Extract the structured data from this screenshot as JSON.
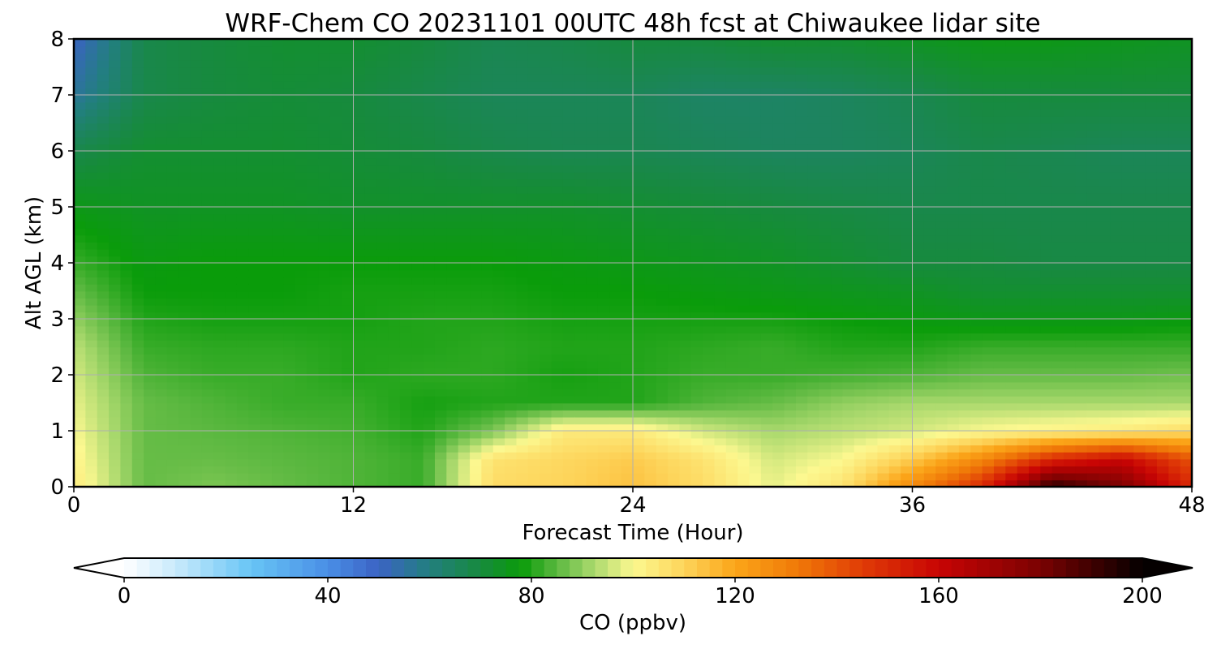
{
  "chart_data": {
    "type": "heatmap",
    "title": "WRF-Chem CO  20231101 00UTC 48h fcst at Chiwaukee lidar site",
    "xlabel": "Forecast Time (Hour)",
    "ylabel": "Alt AGL (km)",
    "xlim": [
      0,
      48
    ],
    "ylim": [
      0,
      8
    ],
    "x_ticks": [
      "0",
      "12",
      "24",
      "36",
      "48"
    ],
    "y_ticks": [
      "0",
      "1",
      "2",
      "3",
      "4",
      "5",
      "6",
      "7",
      "8"
    ],
    "grid": true,
    "x": [
      0,
      3,
      6,
      9,
      12,
      15,
      18,
      21,
      24,
      27,
      30,
      33,
      36,
      39,
      42,
      45,
      48
    ],
    "y": [
      0,
      0.5,
      1,
      1.5,
      2,
      2.5,
      3,
      3.5,
      4,
      5,
      6,
      7,
      8
    ],
    "z": [
      [
        104,
        86,
        88,
        86,
        84,
        82,
        108,
        110,
        114,
        108,
        98,
        106,
        128,
        150,
        195,
        180,
        150
      ],
      [
        102,
        86,
        86,
        85,
        84,
        82,
        106,
        109,
        112,
        106,
        96,
        100,
        112,
        128,
        150,
        160,
        140
      ],
      [
        100,
        86,
        85,
        84,
        83,
        80,
        88,
        104,
        104,
        96,
        92,
        94,
        96,
        100,
        102,
        104,
        108
      ],
      [
        98,
        86,
        84,
        82,
        82,
        79,
        80,
        80,
        80,
        84,
        86,
        90,
        92,
        92,
        92,
        92,
        92
      ],
      [
        96,
        84,
        82,
        82,
        80,
        81,
        81,
        79,
        80,
        82,
        82,
        83,
        84,
        86,
        86,
        86,
        87
      ],
      [
        94,
        82,
        81,
        81,
        80,
        80,
        81,
        80,
        80,
        81,
        82,
        80,
        80,
        82,
        82,
        82,
        82
      ],
      [
        90,
        80,
        79,
        79,
        79,
        80,
        80,
        79,
        79,
        79,
        79,
        78,
        77,
        76,
        76,
        76,
        77
      ],
      [
        86,
        78,
        78,
        78,
        79,
        79,
        79,
        78,
        78,
        77,
        76,
        75,
        74,
        72,
        72,
        72,
        72
      ],
      [
        82,
        77,
        78,
        78,
        78,
        78,
        78,
        77,
        76,
        75,
        74,
        72,
        70,
        70,
        69,
        69,
        69
      ],
      [
        76,
        74,
        74,
        74,
        73,
        73,
        73,
        73,
        72,
        71,
        70,
        69,
        68,
        68,
        68,
        68,
        68
      ],
      [
        68,
        72,
        72,
        72,
        71,
        70,
        68,
        67,
        67,
        66,
        65,
        65,
        66,
        68,
        67,
        66,
        66
      ],
      [
        56,
        68,
        70,
        71,
        70,
        68,
        66,
        66,
        66,
        64,
        64,
        65,
        67,
        70,
        70,
        70,
        70
      ],
      [
        50,
        68,
        70,
        72,
        72,
        70,
        67,
        68,
        70,
        70,
        72,
        72,
        74,
        76,
        76,
        75,
        74
      ]
    ],
    "colorbar": {
      "label": "CO  (ppbv)",
      "min": 0,
      "max": 200,
      "ticks": [
        "0",
        "40",
        "80",
        "120",
        "160",
        "200"
      ],
      "extend": "both",
      "stops": [
        {
          "value": 0,
          "color": "#ffffff"
        },
        {
          "value": 10,
          "color": "#c9eafb"
        },
        {
          "value": 25,
          "color": "#67c5f5"
        },
        {
          "value": 40,
          "color": "#4a8ee6"
        },
        {
          "value": 50,
          "color": "#3b63c4"
        },
        {
          "value": 60,
          "color": "#227f7e"
        },
        {
          "value": 70,
          "color": "#178a3e"
        },
        {
          "value": 78,
          "color": "#0a9c0a"
        },
        {
          "value": 85,
          "color": "#5bb840"
        },
        {
          "value": 92,
          "color": "#a8d86c"
        },
        {
          "value": 100,
          "color": "#fcf890"
        },
        {
          "value": 110,
          "color": "#fdd45a"
        },
        {
          "value": 120,
          "color": "#fba519"
        },
        {
          "value": 132,
          "color": "#f07a08"
        },
        {
          "value": 145,
          "color": "#e03c06"
        },
        {
          "value": 160,
          "color": "#c80404"
        },
        {
          "value": 180,
          "color": "#7a0202"
        },
        {
          "value": 200,
          "color": "#050000"
        }
      ]
    }
  }
}
